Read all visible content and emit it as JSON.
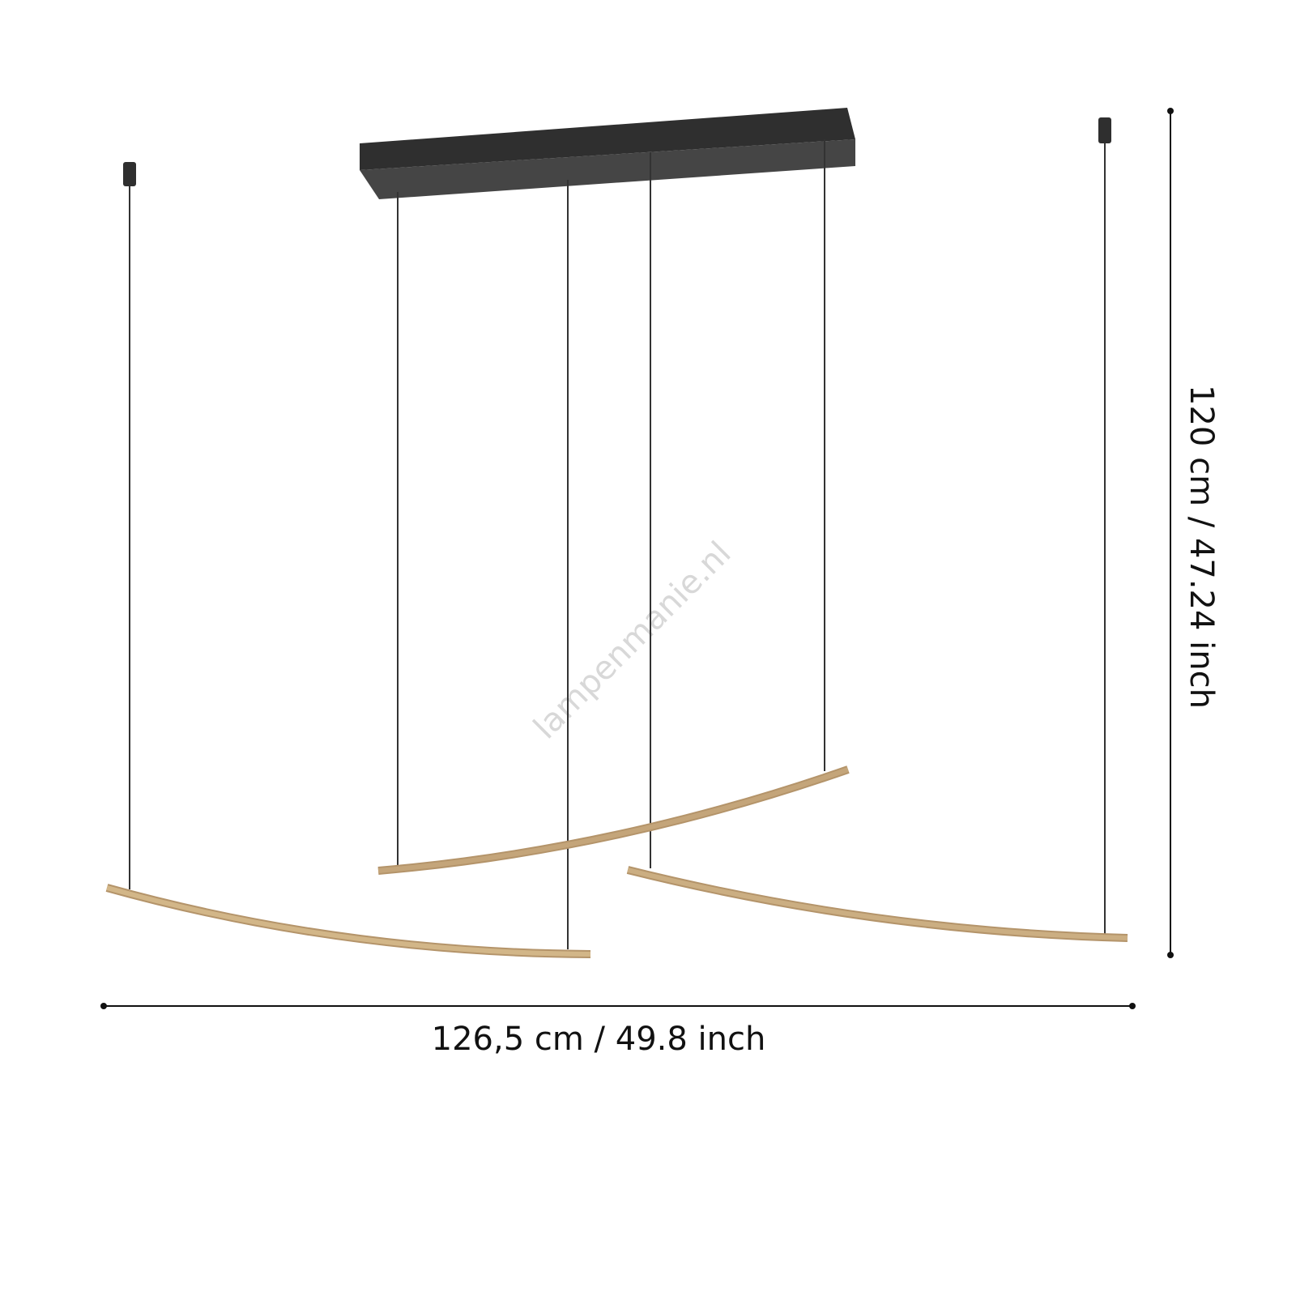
{
  "watermark": "lampenmanie.nl",
  "dimensions": {
    "width_label": "126,5 cm / 49.8 inch",
    "height_label": "120 cm / 47.24 inch"
  },
  "colors": {
    "canopy_top": "#2f2f2f",
    "canopy_front": "#454545",
    "wire": "#333333",
    "bar": "#c9aa7c",
    "bar_edge": "#b4946a"
  }
}
